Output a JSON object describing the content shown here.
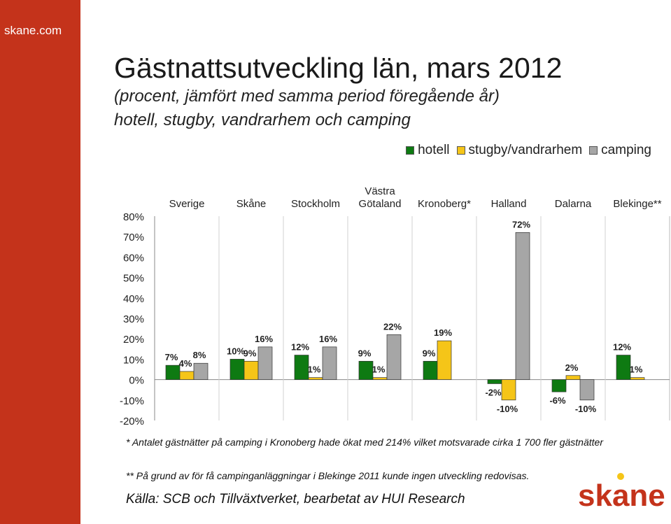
{
  "site": "skane.com",
  "title": "Gästnattsutveckling län, mars 2012",
  "subtitle_1": "(procent, jämfört med samma period föregående år)",
  "subtitle_2": "hotell, stugby, vandrarhem och camping",
  "notes": {
    "note_1": "* Antalet gästnätter på camping i Kronoberg hade ökat med 214% vilket motsvarade cirka 1 700 fler gästnätter",
    "note_2": "** På grund av för få campinganläggningar i Blekinge 2011 kunde ingen utveckling redovisas."
  },
  "source": "Källa: SCB och Tillväxtverket, bearbetat av HUI Research",
  "logo_text": "skane",
  "colors": {
    "sidebar": "#c4331b",
    "hotell": "#0e7a12",
    "stugby": "#f5c518",
    "camping": "#a6a6a6",
    "logo_dot": "#f5c518"
  },
  "chart_data": {
    "type": "bar",
    "categories": [
      [
        "Sverige"
      ],
      [
        "Skåne"
      ],
      [
        "Stockholm"
      ],
      [
        "Västra",
        "Götaland"
      ],
      [
        "Kronoberg*"
      ],
      [
        "Halland"
      ],
      [
        "Dalarna"
      ],
      [
        "Blekinge**"
      ]
    ],
    "series": [
      {
        "name": "hotell",
        "values": [
          7,
          10,
          12,
          9,
          9,
          -2,
          -6,
          12
        ]
      },
      {
        "name": "stugby/vandrarhem",
        "values": [
          4,
          9,
          1,
          1,
          19,
          -10,
          2,
          1
        ]
      },
      {
        "name": "camping",
        "values": [
          8,
          16,
          16,
          22,
          null,
          72,
          -10,
          null
        ]
      }
    ],
    "data_labels": [
      [
        "7%",
        "10%",
        "12%",
        "9%",
        "9%",
        "-2%",
        "-6%",
        "12%"
      ],
      [
        "4%",
        "9%",
        "1%",
        "1%",
        "19%",
        "-10%",
        "2%",
        "1%"
      ],
      [
        "8%",
        "16%",
        "16%",
        "22%",
        "",
        "72%",
        "-10%",
        ""
      ]
    ],
    "ylim": [
      -20,
      80
    ],
    "yticks": [
      80,
      70,
      60,
      50,
      40,
      30,
      20,
      10,
      0,
      -10,
      -20
    ],
    "ytick_labels": [
      "80%",
      "70%",
      "60%",
      "50%",
      "40%",
      "30%",
      "20%",
      "10%",
      "0%",
      "-10%",
      "-20%"
    ],
    "grid": false,
    "legend": "top-right"
  }
}
